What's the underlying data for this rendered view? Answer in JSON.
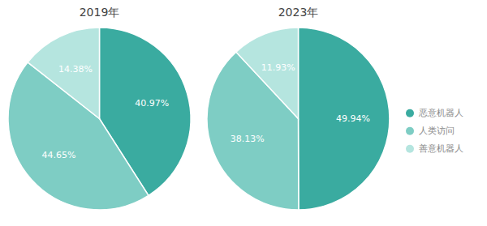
{
  "chart_data": [
    {
      "type": "pie",
      "title": "2019年",
      "categories": [
        "恶意机器人",
        "人类访问",
        "善意机器人"
      ],
      "values": [
        40.97,
        44.65,
        14.38
      ],
      "value_labels": [
        "40.97%",
        "44.65%",
        "14.38%"
      ],
      "colors": [
        "#3aaba0",
        "#7ecdc4",
        "#b5e5df"
      ],
      "data_labels": true,
      "legend": "right"
    },
    {
      "type": "pie",
      "title": "2023年",
      "categories": [
        "恶意机器人",
        "人类访问",
        "善意机器人"
      ],
      "values": [
        49.94,
        38.13,
        11.93
      ],
      "value_labels": [
        "49.94%",
        "38.13%",
        "11.93%"
      ],
      "colors": [
        "#3aaba0",
        "#7ecdc4",
        "#b5e5df"
      ],
      "data_labels": true,
      "legend": "right"
    }
  ]
}
